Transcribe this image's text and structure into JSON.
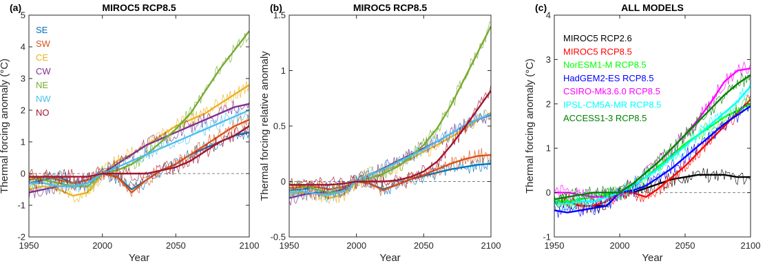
{
  "chart_data": [
    {
      "panel": "(a)",
      "type": "line",
      "title": "MIROC5 RCP8.5",
      "xlabel": "Year",
      "ylabel": "Thermal forcing anomaly (°C)",
      "xlim": [
        1950,
        2100
      ],
      "ylim": [
        -2,
        5
      ],
      "xticks": [
        1950,
        2000,
        2050,
        2100
      ],
      "yticks": [
        -2,
        -1,
        0,
        1,
        2,
        3,
        4,
        5
      ],
      "reference_line": 0,
      "legend_position": "top-left",
      "x": [
        1950,
        1960,
        1970,
        1980,
        1990,
        2000,
        2010,
        2020,
        2030,
        2040,
        2050,
        2060,
        2070,
        2080,
        2090,
        2100
      ],
      "series": [
        {
          "name": "SE",
          "color": "#0072BD",
          "values": [
            -0.3,
            -0.2,
            -0.1,
            -0.3,
            -0.2,
            0.0,
            -0.1,
            -0.5,
            -0.2,
            0.1,
            0.3,
            0.6,
            0.8,
            1.0,
            1.2,
            1.3
          ]
        },
        {
          "name": "SW",
          "color": "#D95319",
          "values": [
            -0.2,
            -0.1,
            -0.2,
            -0.3,
            -0.2,
            0.0,
            -0.1,
            -0.6,
            -0.2,
            0.1,
            0.3,
            0.6,
            0.9,
            1.2,
            1.5,
            1.7
          ]
        },
        {
          "name": "CE",
          "color": "#EDB120",
          "values": [
            -0.5,
            -0.4,
            -0.5,
            -0.7,
            -0.6,
            0.0,
            0.4,
            0.6,
            0.9,
            1.2,
            1.5,
            1.7,
            1.9,
            2.2,
            2.5,
            2.8
          ]
        },
        {
          "name": "CW",
          "color": "#7E2F8E",
          "values": [
            -0.6,
            -0.5,
            -0.4,
            -0.4,
            -0.3,
            0.0,
            0.3,
            0.6,
            0.9,
            1.1,
            1.3,
            1.5,
            1.7,
            1.9,
            2.1,
            2.2
          ]
        },
        {
          "name": "NE",
          "color": "#77AC30",
          "values": [
            -0.1,
            -0.2,
            -0.3,
            -0.4,
            -0.4,
            0.0,
            0.1,
            0.3,
            0.6,
            1.0,
            1.4,
            1.9,
            2.6,
            3.3,
            3.9,
            4.5
          ]
        },
        {
          "name": "NW",
          "color": "#4DBEEE",
          "values": [
            -0.3,
            -0.3,
            -0.4,
            -0.4,
            -0.3,
            0.0,
            0.2,
            0.4,
            0.6,
            0.8,
            1.0,
            1.2,
            1.4,
            1.6,
            1.8,
            2.0
          ]
        },
        {
          "name": "NO",
          "color": "#A2142F",
          "values": [
            -0.1,
            -0.1,
            -0.1,
            -0.1,
            -0.1,
            0.0,
            0.0,
            0.0,
            0.0,
            0.1,
            0.2,
            0.4,
            0.7,
            1.0,
            1.2,
            1.5
          ]
        }
      ]
    },
    {
      "panel": "(b)",
      "type": "line",
      "title": "MIROC5 RCP8.5",
      "xlabel": "Year",
      "ylabel": "Thermal forcing relative anomaly",
      "xlim": [
        1950,
        2100
      ],
      "ylim": [
        -0.5,
        1.5
      ],
      "xticks": [
        1950,
        2000,
        2050,
        2100
      ],
      "yticks": [
        -0.5,
        0,
        0.5,
        1,
        1.5
      ],
      "ytick_labels": [
        "-0.5",
        "0",
        "0.5",
        "1",
        "1.5"
      ],
      "reference_line": 0,
      "x": [
        1950,
        1960,
        1970,
        1980,
        1990,
        2000,
        2010,
        2020,
        2030,
        2040,
        2050,
        2060,
        2070,
        2080,
        2090,
        2100
      ],
      "series": [
        {
          "color": "#0072BD",
          "values": [
            -0.08,
            -0.07,
            -0.05,
            -0.07,
            -0.05,
            0.0,
            -0.02,
            -0.07,
            -0.03,
            0.02,
            0.05,
            0.08,
            0.11,
            0.13,
            0.15,
            0.16
          ]
        },
        {
          "color": "#D95319",
          "values": [
            -0.06,
            -0.05,
            -0.05,
            -0.07,
            -0.05,
            0.0,
            -0.02,
            -0.08,
            -0.03,
            0.02,
            0.06,
            0.11,
            0.16,
            0.2,
            0.23,
            0.24
          ]
        },
        {
          "color": "#EDB120",
          "values": [
            -0.12,
            -0.1,
            -0.11,
            -0.15,
            -0.12,
            0.0,
            0.07,
            0.1,
            0.14,
            0.2,
            0.27,
            0.33,
            0.4,
            0.47,
            0.55,
            0.62
          ]
        },
        {
          "color": "#7E2F8E",
          "values": [
            -0.15,
            -0.12,
            -0.1,
            -0.1,
            -0.07,
            0.0,
            0.06,
            0.12,
            0.18,
            0.24,
            0.3,
            0.36,
            0.43,
            0.5,
            0.56,
            0.6
          ]
        },
        {
          "color": "#77AC30",
          "values": [
            -0.03,
            -0.04,
            -0.07,
            -0.1,
            -0.09,
            0.0,
            0.03,
            0.07,
            0.13,
            0.22,
            0.33,
            0.48,
            0.68,
            0.92,
            1.16,
            1.4
          ]
        },
        {
          "color": "#4DBEEE",
          "values": [
            -0.1,
            -0.09,
            -0.11,
            -0.12,
            -0.09,
            0.0,
            0.06,
            0.11,
            0.17,
            0.23,
            0.29,
            0.36,
            0.43,
            0.5,
            0.56,
            0.61
          ]
        },
        {
          "color": "#A2142F",
          "values": [
            -0.03,
            -0.03,
            -0.03,
            -0.03,
            -0.02,
            0.0,
            0.0,
            0.0,
            0.01,
            0.04,
            0.09,
            0.18,
            0.32,
            0.48,
            0.65,
            0.82
          ]
        }
      ]
    },
    {
      "panel": "(c)",
      "type": "line",
      "title": "ALL MODELS",
      "xlabel": "Year",
      "ylabel": "Thermal forcing anomaly (°C)",
      "xlim": [
        1950,
        2100
      ],
      "ylim": [
        -1,
        4
      ],
      "xticks": [
        1950,
        2000,
        2050,
        2100
      ],
      "yticks": [
        -1,
        0,
        1,
        2,
        3,
        4
      ],
      "reference_line": 0,
      "legend_position": "top-left",
      "x": [
        1950,
        1960,
        1970,
        1980,
        1990,
        2000,
        2010,
        2020,
        2030,
        2040,
        2050,
        2060,
        2070,
        2080,
        2090,
        2100
      ],
      "series": [
        {
          "name": "MIROC5 RCP2.6",
          "color": "#000000",
          "values": [
            -0.2,
            -0.2,
            -0.3,
            -0.3,
            -0.3,
            0.0,
            0.0,
            0.1,
            0.2,
            0.3,
            0.35,
            0.4,
            0.4,
            0.4,
            0.35,
            0.35
          ]
        },
        {
          "name": "MIROC5 RCP8.5",
          "color": "#FF0000",
          "values": [
            -0.2,
            -0.2,
            -0.3,
            -0.3,
            -0.2,
            0.0,
            0.0,
            -0.1,
            0.1,
            0.35,
            0.6,
            0.9,
            1.2,
            1.5,
            1.8,
            2.1
          ]
        },
        {
          "name": "NorESM1-M RCP8.5",
          "color": "#00FF00",
          "values": [
            -0.2,
            -0.2,
            -0.15,
            -0.1,
            -0.05,
            0.0,
            0.15,
            0.35,
            0.6,
            0.85,
            1.1,
            1.3,
            1.5,
            1.7,
            1.85,
            2.0
          ]
        },
        {
          "name": "HadGEM2-ES RCP8.5",
          "color": "#0000FF",
          "values": [
            -0.4,
            -0.45,
            -0.4,
            -0.35,
            -0.3,
            0.0,
            0.05,
            0.15,
            0.35,
            0.55,
            0.8,
            1.05,
            1.3,
            1.55,
            1.75,
            1.95
          ]
        },
        {
          "name": "CSIRO-Mk3.6.0 RCP8.5",
          "color": "#FF00FF",
          "values": [
            0.0,
            0.0,
            -0.05,
            -0.1,
            -0.1,
            0.0,
            0.2,
            0.45,
            0.7,
            1.0,
            1.3,
            1.65,
            2.05,
            2.5,
            2.75,
            2.8
          ]
        },
        {
          "name": "IPSL-CM5A-MR RCP8.5",
          "color": "#00FFFF",
          "values": [
            -0.25,
            -0.25,
            -0.2,
            -0.2,
            -0.1,
            0.0,
            0.15,
            0.35,
            0.55,
            0.8,
            1.05,
            1.3,
            1.55,
            1.8,
            2.05,
            2.4
          ]
        },
        {
          "name": "ACCESS1-3 RCP8.5",
          "color": "#008000",
          "values": [
            -0.15,
            -0.1,
            -0.05,
            0.0,
            0.0,
            0.0,
            0.2,
            0.45,
            0.7,
            1.0,
            1.3,
            1.6,
            1.9,
            2.2,
            2.45,
            2.65
          ]
        }
      ]
    }
  ]
}
